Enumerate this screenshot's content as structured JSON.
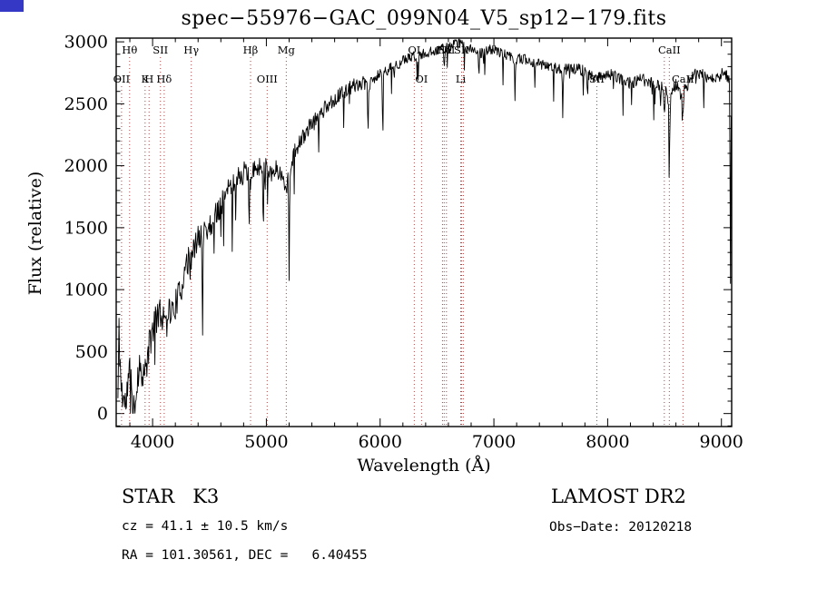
{
  "title": "spec−55976−GAC_099N04_V5_sp12−179.fits",
  "corner_mark": {
    "style": "background:#3538c4;"
  },
  "annotations": {
    "class_label": "STAR   K3",
    "survey": "LAMOST DR2",
    "cz": "cz = 41.1 ± 10.5 km/s",
    "obs_date": "Obs−Date: 20120218",
    "coords": "RA = 101.30561, DEC =   6.40455"
  },
  "chart_data": {
    "type": "line",
    "title": "spec−55976−GAC_099N04_V5_sp12−179.fits",
    "xlabel": "Wavelength (Å)",
    "ylabel": "Flux (relative)",
    "xlim": [
      3680,
      9090
    ],
    "ylim": [
      -105,
      3030
    ],
    "xticks": [
      4000,
      5000,
      6000,
      7000,
      8000,
      9000
    ],
    "yticks": [
      0,
      500,
      1000,
      1500,
      2000,
      2500,
      3000
    ],
    "grid": false,
    "legend": "none",
    "trace_color": "#000000",
    "marker_color": "#aa4444",
    "spectral_lines": [
      {
        "wavelength": 3727,
        "label": "OII",
        "row": "bottom"
      },
      {
        "wavelength": 3798,
        "label": "Hθ",
        "row": "top"
      },
      {
        "wavelength": 3934,
        "label": "K",
        "row": "bottom"
      },
      {
        "wavelength": 3969,
        "label": "H",
        "row": "bottom"
      },
      {
        "wavelength": 4069,
        "label": "SII",
        "row": "top"
      },
      {
        "wavelength": 4102,
        "label": "Hδ",
        "row": "bottom"
      },
      {
        "wavelength": 4340,
        "label": "Hγ",
        "row": "top"
      },
      {
        "wavelength": 4861,
        "label": "Hβ",
        "row": "top"
      },
      {
        "wavelength": 5007,
        "label": "OIII",
        "row": "bottom"
      },
      {
        "wavelength": 5175,
        "label": "Mg",
        "row": "top"
      },
      {
        "wavelength": 6300,
        "label": "OI",
        "row": "top"
      },
      {
        "wavelength": 6364,
        "label": "OI",
        "row": "bottom"
      },
      {
        "wavelength": 6548,
        "label": "",
        "row": ""
      },
      {
        "wavelength": 6563,
        "label": "Hα",
        "row": "top"
      },
      {
        "wavelength": 6583,
        "label": "NII",
        "row": "top"
      },
      {
        "wavelength": 6708,
        "label": "Li",
        "row": "bottom"
      },
      {
        "wavelength": 6716,
        "label": "SII",
        "row": "top"
      },
      {
        "wavelength": 6731,
        "label": "",
        "row": ""
      },
      {
        "wavelength": 7905,
        "label": "SII",
        "row": "bottom"
      },
      {
        "wavelength": 8498,
        "label": "",
        "row": ""
      },
      {
        "wavelength": 8542,
        "label": "CaII",
        "row": "top"
      },
      {
        "wavelength": 8662,
        "label": "CaII",
        "row": "bottom"
      }
    ],
    "flux_profile": [
      [
        3695,
        120
      ],
      [
        3705,
        650
      ],
      [
        3715,
        400
      ],
      [
        3725,
        210
      ],
      [
        3740,
        140
      ],
      [
        3760,
        60
      ],
      [
        3780,
        210
      ],
      [
        3800,
        330
      ],
      [
        3820,
        150
      ],
      [
        3845,
        70
      ],
      [
        3870,
        330
      ],
      [
        3900,
        390
      ],
      [
        3930,
        290
      ],
      [
        3960,
        480
      ],
      [
        3990,
        630
      ],
      [
        4020,
        760
      ],
      [
        4050,
        810
      ],
      [
        4080,
        780
      ],
      [
        4110,
        830
      ],
      [
        4140,
        850
      ],
      [
        4170,
        810
      ],
      [
        4200,
        880
      ],
      [
        4230,
        950
      ],
      [
        4260,
        1030
      ],
      [
        4290,
        1280
      ],
      [
        4305,
        1120
      ],
      [
        4320,
        1300
      ],
      [
        4340,
        1230
      ],
      [
        4365,
        1330
      ],
      [
        4400,
        1410
      ],
      [
        4425,
        1460
      ],
      [
        4435,
        1160
      ],
      [
        4450,
        1500
      ],
      [
        4490,
        1490
      ],
      [
        4530,
        1560
      ],
      [
        4570,
        1630
      ],
      [
        4610,
        1710
      ],
      [
        4660,
        1790
      ],
      [
        4710,
        1860
      ],
      [
        4760,
        1910
      ],
      [
        4810,
        1950
      ],
      [
        4850,
        1910
      ],
      [
        4861,
        1790
      ],
      [
        4875,
        1930
      ],
      [
        4910,
        1980
      ],
      [
        4950,
        2010
      ],
      [
        5000,
        1985
      ],
      [
        5050,
        1950
      ],
      [
        5100,
        1975
      ],
      [
        5160,
        1860
      ],
      [
        5175,
        1800
      ],
      [
        5190,
        1960
      ],
      [
        5200,
        1360
      ],
      [
        5212,
        2010
      ],
      [
        5240,
        2090
      ],
      [
        5270,
        2150
      ],
      [
        5310,
        2210
      ],
      [
        5360,
        2290
      ],
      [
        5410,
        2340
      ],
      [
        5460,
        2410
      ],
      [
        5510,
        2460
      ],
      [
        5560,
        2510
      ],
      [
        5610,
        2545
      ],
      [
        5660,
        2580
      ],
      [
        5710,
        2615
      ],
      [
        5760,
        2645
      ],
      [
        5810,
        2660
      ],
      [
        5860,
        2670
      ],
      [
        5887,
        2640
      ],
      [
        5893,
        2160
      ],
      [
        5902,
        2650
      ],
      [
        5950,
        2700
      ],
      [
        6000,
        2740
      ],
      [
        6018,
        2740
      ],
      [
        6023,
        1980
      ],
      [
        6028,
        2740
      ],
      [
        6050,
        2765
      ],
      [
        6100,
        2790
      ],
      [
        6150,
        2820
      ],
      [
        6200,
        2845
      ],
      [
        6250,
        2870
      ],
      [
        6300,
        2880
      ],
      [
        6350,
        2890
      ],
      [
        6400,
        2905
      ],
      [
        6450,
        2920
      ],
      [
        6500,
        2940
      ],
      [
        6556,
        2950
      ],
      [
        6563,
        2810
      ],
      [
        6572,
        2950
      ],
      [
        6620,
        2965
      ],
      [
        6680,
        2990
      ],
      [
        6720,
        2980
      ],
      [
        6760,
        2960
      ],
      [
        6800,
        2945
      ],
      [
        6850,
        2925
      ],
      [
        6900,
        2905
      ],
      [
        6950,
        2930
      ],
      [
        7000,
        2945
      ],
      [
        7050,
        2915
      ],
      [
        7100,
        2895
      ],
      [
        7150,
        2875
      ],
      [
        7180,
        2855
      ],
      [
        7186,
        2450
      ],
      [
        7192,
        2850
      ],
      [
        7200,
        2855
      ],
      [
        7250,
        2865
      ],
      [
        7300,
        2855
      ],
      [
        7350,
        2835
      ],
      [
        7400,
        2825
      ],
      [
        7450,
        2815
      ],
      [
        7500,
        2805
      ],
      [
        7550,
        2790
      ],
      [
        7592,
        2780
      ],
      [
        7606,
        2610
      ],
      [
        7622,
        2775
      ],
      [
        7680,
        2790
      ],
      [
        7740,
        2780
      ],
      [
        7800,
        2760
      ],
      [
        7850,
        2725
      ],
      [
        7900,
        2705
      ],
      [
        7950,
        2725
      ],
      [
        8000,
        2745
      ],
      [
        8050,
        2725
      ],
      [
        8100,
        2705
      ],
      [
        8150,
        2685
      ],
      [
        8200,
        2665
      ],
      [
        8250,
        2685
      ],
      [
        8300,
        2705
      ],
      [
        8350,
        2675
      ],
      [
        8400,
        2665
      ],
      [
        8450,
        2655
      ],
      [
        8490,
        2605
      ],
      [
        8498,
        2460
      ],
      [
        8512,
        2625
      ],
      [
        8535,
        2510
      ],
      [
        8542,
        2030
      ],
      [
        8552,
        2555
      ],
      [
        8600,
        2655
      ],
      [
        8652,
        2555
      ],
      [
        8662,
        2410
      ],
      [
        8672,
        2605
      ],
      [
        8720,
        2685
      ],
      [
        8770,
        2725
      ],
      [
        8820,
        2745
      ],
      [
        8870,
        2705
      ],
      [
        8920,
        2725
      ],
      [
        8960,
        2695
      ],
      [
        9000,
        2745
      ],
      [
        9030,
        2725
      ],
      [
        9055,
        2705
      ],
      [
        9072,
        2700
      ],
      [
        9080,
        1090
      ],
      [
        9086,
        2695
      ],
      [
        9088,
        2710
      ]
    ],
    "noise_profile": [
      [
        3695,
        170
      ],
      [
        3800,
        170
      ],
      [
        3900,
        155
      ],
      [
        4000,
        135
      ],
      [
        4200,
        120
      ],
      [
        4400,
        110
      ],
      [
        4600,
        100
      ],
      [
        4800,
        92
      ],
      [
        5000,
        82
      ],
      [
        5200,
        75
      ],
      [
        5400,
        66
      ],
      [
        5600,
        60
      ],
      [
        5800,
        55
      ],
      [
        6000,
        50
      ],
      [
        6300,
        45
      ],
      [
        6600,
        40
      ],
      [
        7000,
        42
      ],
      [
        7400,
        45
      ],
      [
        7800,
        47
      ],
      [
        8200,
        50
      ],
      [
        8600,
        54
      ],
      [
        9000,
        58
      ]
    ],
    "noise_seed": 11,
    "sample_step": 5,
    "spike_probability": 0.05,
    "spike_scale": 4
  }
}
